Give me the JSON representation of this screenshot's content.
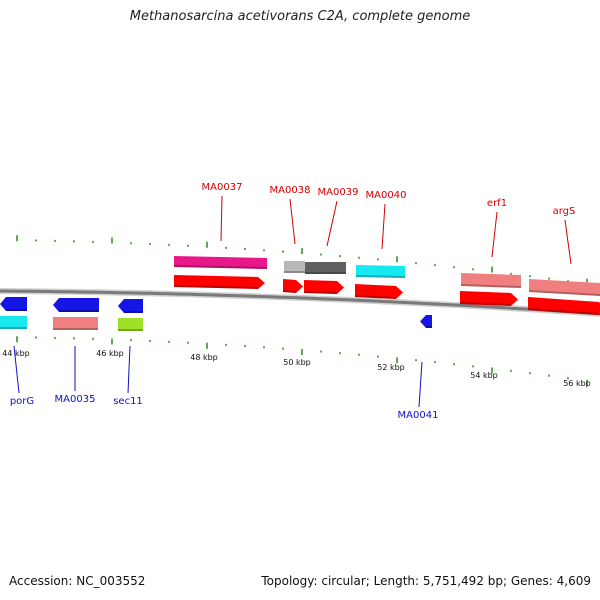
{
  "title": "Methanosarcina acetivorans C2A, complete genome",
  "footer": {
    "accession": "Accession: NC_003552",
    "summary": "Topology: circular; Length: 5,751,492 bp; Genes: 4,609"
  },
  "scale_labels": [
    "44 kbp",
    "46 kbp",
    "48 kbp",
    "50 kbp",
    "52 kbp",
    "54 kbp",
    "56 kbp"
  ],
  "colors": {
    "backbone": "#7a7a7a",
    "tick": "#2a8a1e",
    "forward_label": "#d40000",
    "reverse_label": "#1010c8",
    "cds": "#ff0000",
    "gene_blue": "#1515e6",
    "magenta": "#e8188a",
    "cyan": "#18e8f0",
    "salmon": "#f08080",
    "lime": "#9ee02a",
    "grey_light": "#b8b8b8",
    "grey_dark": "#606060"
  },
  "forward_labels": [
    "MA0037",
    "MA0038",
    "MA0039",
    "MA0040",
    "erf1",
    "argS"
  ],
  "reverse_labels": [
    "porG",
    "MA0035",
    "sec11",
    "MA0041"
  ]
}
